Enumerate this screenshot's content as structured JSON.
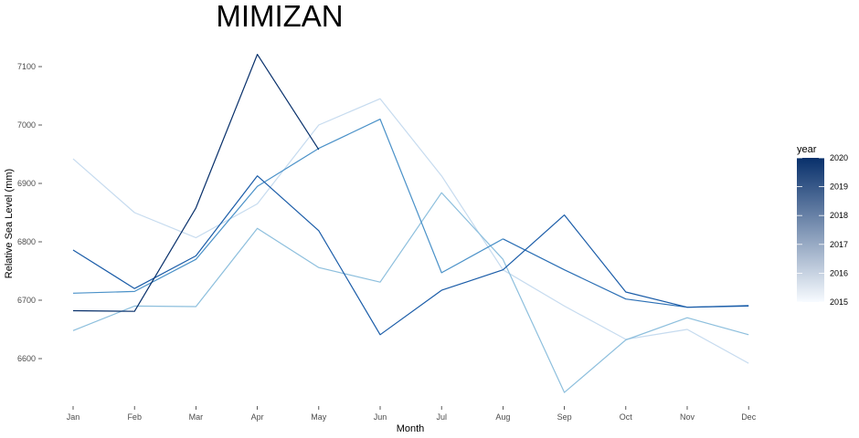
{
  "chart_data": {
    "type": "line",
    "title": "MIMIZAN",
    "xlabel": "Month",
    "ylabel": "Relative Sea Level (mm)",
    "categories": [
      "Jan",
      "Feb",
      "Mar",
      "Apr",
      "May",
      "Jun",
      "Jul",
      "Aug",
      "Sep",
      "Oct",
      "Nov",
      "Dec"
    ],
    "ylim": [
      6530,
      7130
    ],
    "yticks": [
      6600,
      6700,
      6800,
      6900,
      7000,
      7100
    ],
    "grid": false,
    "series": [
      {
        "year": 2015.5,
        "color": "#c6dbef",
        "values": [
          6942,
          6850,
          6807,
          6865,
          7000,
          7045,
          6913,
          6752,
          6690,
          6633,
          6650,
          6592
        ]
      },
      {
        "year": 2016.5,
        "color": "#8dbfdd",
        "values": [
          6648,
          6690,
          6689,
          6823,
          6756,
          6731,
          6884,
          6770,
          6542,
          6632,
          6670,
          6641
        ]
      },
      {
        "year": 2017.8,
        "color": "#4a91c8",
        "values": [
          6712,
          6715,
          6770,
          6895,
          6960,
          7010,
          6747,
          6805,
          null,
          null,
          null,
          null
        ]
      },
      {
        "year": 2018.8,
        "color": "#2b6fb5",
        "values": [
          null,
          null,
          null,
          null,
          null,
          null,
          null,
          6805,
          6752,
          6702,
          6688,
          6691
        ]
      },
      {
        "year": 2019.2,
        "color": "#1a5ca8",
        "values": [
          6786,
          6720,
          6776,
          6913,
          6819,
          6641,
          6717,
          6752,
          6846,
          6714,
          6688,
          6690
        ]
      },
      {
        "year": 2020,
        "color": "#08306b",
        "values": [
          6682,
          6681,
          6858,
          7121,
          6958,
          null,
          null,
          null,
          null,
          null,
          null,
          null
        ]
      }
    ],
    "legend": {
      "title": "year",
      "position": "right",
      "labels": [
        "2020",
        "2019",
        "2018",
        "2017",
        "2016",
        "2015"
      ],
      "min": 2015,
      "max": 2020,
      "color_low": "#f7fbff",
      "color_high": "#08306b"
    }
  }
}
